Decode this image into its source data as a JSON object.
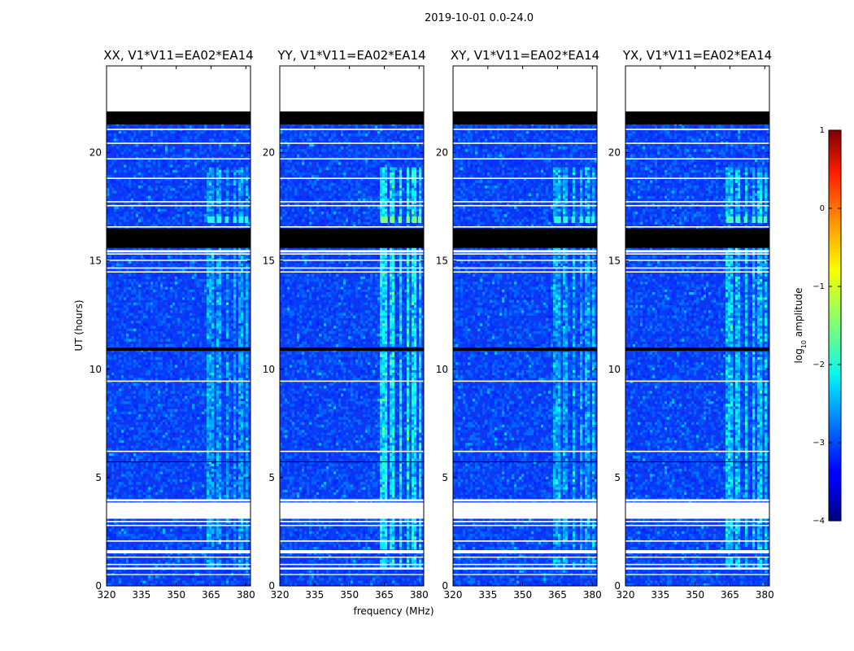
{
  "chart_data": {
    "type": "heatmap",
    "title": "2019-10-01 0.0-24.0",
    "xlabel": "frequency (MHz)",
    "ylabel": "UT (hours)",
    "xlim": [
      320,
      382
    ],
    "ylim": [
      0,
      24
    ],
    "x_ticks": [
      "320",
      "335",
      "350",
      "365",
      "380"
    ],
    "x_tick_values": [
      320,
      335,
      350,
      365,
      380
    ],
    "y_ticks": [
      "0",
      "5",
      "10",
      "15",
      "20"
    ],
    "y_tick_values": [
      0,
      5,
      10,
      15,
      20
    ],
    "panels": [
      {
        "title": "XX, V1*V11=EA02*EA14",
        "rfi_strength": 0.55
      },
      {
        "title": "YY, V1*V11=EA02*EA14",
        "rfi_strength": 1.0
      },
      {
        "title": "XY, V1*V11=EA02*EA14",
        "rfi_strength": 0.6
      },
      {
        "title": "YX, V1*V11=EA02*EA14",
        "rfi_strength": 0.75
      }
    ],
    "colorbar": {
      "label": "log10 amplitude",
      "label_main": "log",
      "label_sub": "10",
      "label_rest": " amplitude",
      "range": [
        -4,
        1
      ],
      "ticks": [
        "1",
        "0",
        "−1",
        "−2",
        "−3",
        "−4"
      ],
      "tick_values": [
        1,
        0,
        -1,
        -2,
        -3,
        -4
      ],
      "colormap": "jet"
    },
    "blank_hour_ranges": [
      [
        21.9,
        24.0
      ],
      [
        3.9,
        4.0
      ],
      [
        3.1,
        3.85
      ],
      [
        1.5,
        1.65
      ],
      [
        1.3,
        1.35
      ],
      [
        0.75,
        0.85
      ],
      [
        0.5,
        0.55
      ]
    ],
    "flagged_hour_ranges": [
      [
        21.3,
        21.9
      ],
      [
        15.6,
        16.5
      ],
      [
        10.85,
        11.0
      ]
    ],
    "rfi_freq_bands_mhz": [
      [
        363.5,
        366.5
      ],
      [
        367.5,
        369.5
      ],
      [
        371,
        372.5
      ],
      [
        374.5,
        376
      ],
      [
        377,
        379
      ],
      [
        379.5,
        381
      ]
    ],
    "rfi_hour_ranges": [
      [
        0.85,
        1.3
      ],
      [
        1.65,
        3.1
      ],
      [
        4.0,
        10.85
      ],
      [
        11.0,
        15.6
      ],
      [
        16.8,
        19.3
      ]
    ]
  }
}
